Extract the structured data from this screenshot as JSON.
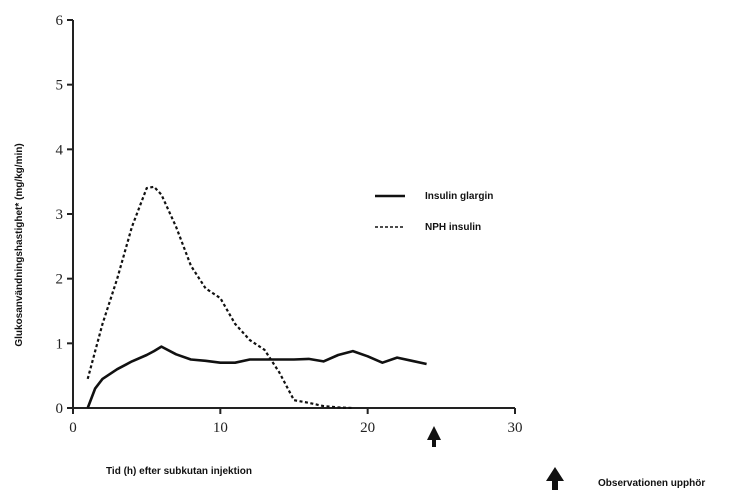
{
  "chart_data": {
    "type": "line",
    "xlabel": "Tid (h) efter subkutan injektion",
    "ylabel": "Glukosanvändningshastighet* (mg/kg/min)",
    "xlim": [
      0,
      30
    ],
    "ylim": [
      0,
      6
    ],
    "x_ticks": [
      "0",
      "10",
      "20",
      "30"
    ],
    "y_ticks": [
      "0",
      "1",
      "2",
      "3",
      "4",
      "5",
      "6"
    ],
    "grid": false,
    "legend_position": "right",
    "series": [
      {
        "name": "Insulin glargin",
        "style": "solid",
        "color": "#111111",
        "x": [
          1.0,
          1.5,
          2.0,
          3.0,
          4.0,
          5.0,
          5.5,
          6.0,
          7.0,
          8.0,
          9.0,
          10.0,
          11.0,
          12.0,
          13.0,
          14.0,
          15.0,
          16.0,
          17.0,
          18.0,
          19.0,
          20.0,
          21.0,
          22.0,
          23.0,
          24.0
        ],
        "values": [
          0.0,
          0.3,
          0.45,
          0.6,
          0.72,
          0.82,
          0.88,
          0.95,
          0.83,
          0.75,
          0.73,
          0.7,
          0.7,
          0.75,
          0.75,
          0.75,
          0.75,
          0.76,
          0.72,
          0.82,
          0.88,
          0.8,
          0.7,
          0.78,
          0.73,
          0.68
        ]
      },
      {
        "name": "NPH insulin",
        "style": "dashed",
        "color": "#111111",
        "x": [
          1.0,
          2.0,
          3.0,
          4.0,
          5.0,
          5.5,
          6.0,
          7.0,
          8.0,
          9.0,
          10.0,
          11.0,
          12.0,
          13.0,
          14.0,
          15.0,
          16.0,
          17.0,
          18.0,
          19.0
        ],
        "values": [
          0.45,
          1.3,
          2.0,
          2.8,
          3.4,
          3.42,
          3.3,
          2.8,
          2.2,
          1.85,
          1.7,
          1.3,
          1.05,
          0.9,
          0.55,
          0.12,
          0.08,
          0.03,
          0.01,
          0.0
        ]
      }
    ],
    "annotations": [
      {
        "label": "",
        "x": 24.3
      }
    ],
    "footnote_marker_text": "Observationen upphör"
  }
}
